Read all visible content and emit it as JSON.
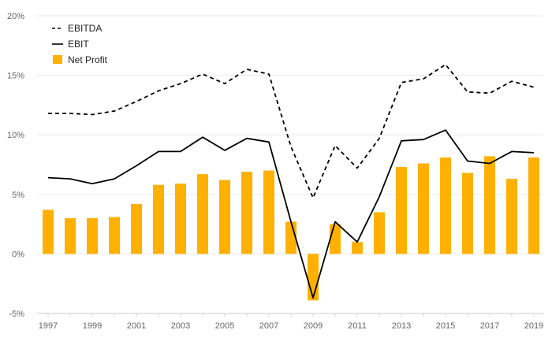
{
  "chart_data": {
    "type": "bar",
    "title": "",
    "xlabel": "",
    "ylabel": "",
    "ylim": [
      -5,
      20
    ],
    "yticks": [
      -5,
      0,
      5,
      10,
      15,
      20
    ],
    "ytick_labels": [
      "-5%",
      "0%",
      "5%",
      "10%",
      "15%",
      "20%"
    ],
    "grid": true,
    "legend_placement": "top-left",
    "categories": [
      "1997",
      "1998",
      "1999",
      "2000",
      "2001",
      "2002",
      "2003",
      "2004",
      "2005",
      "2006",
      "2007",
      "2008",
      "2009",
      "2010",
      "2011",
      "2012",
      "2013",
      "2014",
      "2015",
      "2016",
      "2017",
      "2018",
      "2019"
    ],
    "xtick_labels": [
      "1997",
      "1999",
      "2001",
      "2003",
      "2005",
      "2007",
      "2009",
      "2011",
      "2013",
      "2015",
      "2017",
      "2019"
    ],
    "series": [
      {
        "name": "EBITDA",
        "type": "line",
        "style": "dashed",
        "color": "#000000",
        "values": [
          11.8,
          11.8,
          11.7,
          12.0,
          12.8,
          13.7,
          14.3,
          15.1,
          14.3,
          15.5,
          15.1,
          9.0,
          4.7,
          9.1,
          7.2,
          9.7,
          14.4,
          14.7,
          15.9,
          13.6,
          13.5,
          14.5,
          14.0
        ]
      },
      {
        "name": "EBIT",
        "type": "line",
        "style": "solid",
        "color": "#000000",
        "values": [
          6.4,
          6.3,
          5.9,
          6.3,
          7.4,
          8.6,
          8.6,
          9.8,
          8.7,
          9.7,
          9.4,
          2.7,
          -3.7,
          2.7,
          1.0,
          4.8,
          9.5,
          9.6,
          10.4,
          7.8,
          7.6,
          8.6,
          8.5
        ]
      },
      {
        "name": "Net Profit",
        "type": "bar",
        "color": "#FFB000",
        "values": [
          3.7,
          3.0,
          3.0,
          3.1,
          4.2,
          5.8,
          5.9,
          6.7,
          6.2,
          6.9,
          7.0,
          2.7,
          -3.9,
          2.5,
          1.0,
          3.5,
          7.3,
          7.6,
          8.1,
          6.8,
          8.2,
          6.3,
          8.1
        ]
      }
    ]
  }
}
